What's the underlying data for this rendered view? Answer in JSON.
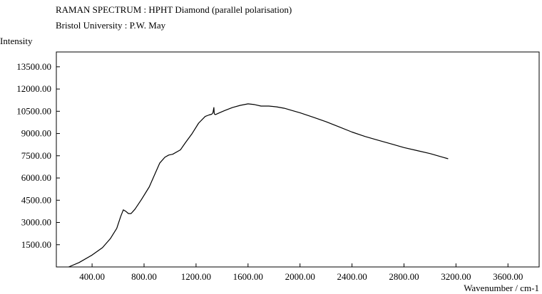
{
  "chart_data": {
    "type": "line",
    "title": "RAMAN SPECTRUM : HPHT Diamond (parallel polarisation)",
    "subtitle": "Bristol University : P.W. May",
    "ylabel": "Intensity",
    "xlabel": "Wavenumber / cm-1",
    "xlim": [
      125,
      3840
    ],
    "ylim": [
      0,
      14500
    ],
    "x_ticks": [
      400,
      800,
      1200,
      1600,
      2000,
      2400,
      2800,
      3200,
      3600
    ],
    "x_tick_labels": [
      "400.00",
      "800.00",
      "1200.00",
      "1600.00",
      "2000.00",
      "2400.00",
      "2800.00",
      "3200.00",
      "3600.00"
    ],
    "y_ticks": [
      1500,
      3000,
      4500,
      6000,
      7500,
      9000,
      10500,
      12000,
      13500
    ],
    "y_tick_labels": [
      "1500.00",
      "3000.00",
      "4500.00",
      "6000.00",
      "7500.00",
      "9000.00",
      "10500.00",
      "12000.00",
      "13500.00"
    ],
    "grid": false,
    "color": "#000000",
    "series": [
      {
        "x": [
          220,
          300,
          400,
          480,
          540,
          590,
          620,
          640,
          660,
          680,
          700,
          730,
          780,
          840,
          880,
          920,
          960,
          990,
          1020,
          1080,
          1120,
          1170,
          1220,
          1270,
          1300,
          1320,
          1330,
          1337,
          1340,
          1343,
          1350,
          1380,
          1420,
          1480,
          1540,
          1600,
          1650,
          1700,
          1760,
          1820,
          1880,
          1940,
          2000,
          2100,
          2200,
          2300,
          2400,
          2500,
          2600,
          2700,
          2800,
          2900,
          3000,
          3100,
          3140
        ],
        "y": [
          0,
          300,
          800,
          1300,
          1900,
          2600,
          3400,
          3850,
          3750,
          3600,
          3600,
          3900,
          4550,
          5400,
          6200,
          7000,
          7400,
          7550,
          7600,
          7900,
          8400,
          9000,
          9700,
          10150,
          10250,
          10300,
          10400,
          10750,
          10350,
          10300,
          10280,
          10400,
          10550,
          10750,
          10900,
          11000,
          10950,
          10850,
          10850,
          10800,
          10700,
          10550,
          10400,
          10100,
          9800,
          9450,
          9100,
          8800,
          8550,
          8300,
          8050,
          7850,
          7650,
          7400,
          7300
        ]
      }
    ]
  }
}
